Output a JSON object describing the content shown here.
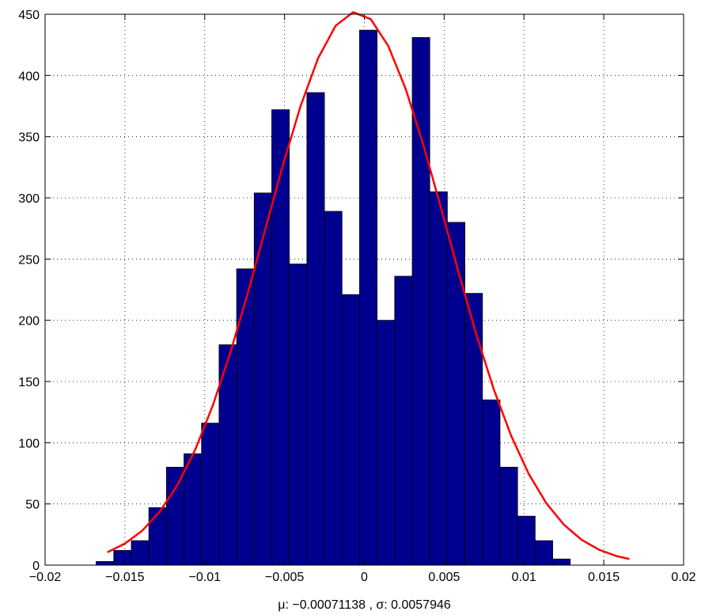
{
  "chart_data": {
    "type": "bar",
    "title": "",
    "xlabel": "μ: −0.00071138 , σ: 0.0057946",
    "ylabel": "",
    "xlim": [
      -0.02,
      0.02
    ],
    "ylim": [
      0,
      450
    ],
    "xticks": [
      -0.02,
      -0.015,
      -0.01,
      -0.005,
      0,
      0.005,
      0.01,
      0.015,
      0.02
    ],
    "xtick_labels": [
      "−0.02",
      "−0.015",
      "−0.01",
      "−0.005",
      "0",
      "0.005",
      "0.01",
      "0.015",
      "0.02"
    ],
    "yticks": [
      0,
      50,
      100,
      150,
      200,
      250,
      300,
      350,
      400,
      450
    ],
    "ytick_labels": [
      "0",
      "50",
      "100",
      "150",
      "200",
      "250",
      "300",
      "350",
      "400",
      "450"
    ],
    "grid": true,
    "grid_style": "dotted",
    "bin_width": 0.0011,
    "bin_centers": [
      -0.01625,
      -0.01515,
      -0.01405,
      -0.01295,
      -0.01185,
      -0.01075,
      -0.00965,
      -0.00855,
      -0.00745,
      -0.00635,
      -0.00525,
      -0.00415,
      -0.00305,
      -0.00195,
      -0.00085,
      0.00025,
      0.00135,
      0.00245,
      0.00355,
      0.00465,
      0.00575,
      0.00685,
      0.00795,
      0.00905,
      0.01015,
      0.01125,
      0.01235,
      0.01345
    ],
    "values": [
      3,
      12,
      20,
      47,
      80,
      91,
      116,
      180,
      242,
      304,
      372,
      246,
      386,
      289,
      221,
      437,
      200,
      236,
      431,
      305,
      280,
      222,
      135,
      80,
      40,
      20,
      5,
      0
    ],
    "bar_color": "#00008f",
    "bar_edge_color": "#000000",
    "fit_line": {
      "type": "line",
      "name": "",
      "color": "#ff0000",
      "mu": -0.00071138,
      "sigma": 0.0057946,
      "x": [
        -0.0161,
        -0.015,
        -0.0139,
        -0.0128,
        -0.0117,
        -0.0106,
        -0.0095,
        -0.0084,
        -0.0073,
        -0.0062,
        -0.0051,
        -0.004,
        -0.0029,
        -0.0018,
        -0.0007,
        0.0004,
        0.0015,
        0.0026,
        0.0037,
        0.0048,
        0.0059,
        0.007,
        0.0081,
        0.0092,
        0.0103,
        0.0114,
        0.0125,
        0.0136,
        0.0147,
        0.0158,
        0.0166
      ],
      "y": [
        10.5,
        17.6,
        28.3,
        44.0,
        65.6,
        94.2,
        130.2,
        173.4,
        222.2,
        274.6,
        326.9,
        374.8,
        414.0,
        440.6,
        451.7,
        446.0,
        424.1,
        388.6,
        343.1,
        291.9,
        239.3,
        189.1,
        143.9,
        105.6,
        74.5,
        50.6,
        33.1,
        20.8,
        12.6,
        7.4,
        5.0
      ]
    }
  }
}
